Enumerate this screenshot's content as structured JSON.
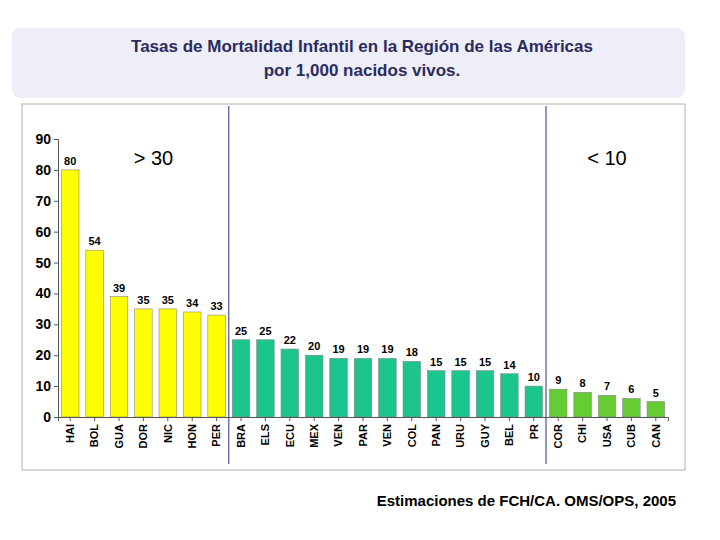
{
  "chart_data": {
    "type": "bar",
    "title": "Tasas de Mortalidad Infantil en la Región de las Américas",
    "subtitle": "por 1,000 nacidos vivos.",
    "annotations": [
      "> 30",
      "< 10"
    ],
    "source": "Estimaciones de FCH/CA. OMS/OPS, 2005",
    "categories": [
      "HAI",
      "BOL",
      "GUA",
      "DOR",
      "NIC",
      "HON",
      "PER",
      "BRA",
      "ELS",
      "ECU",
      "MEX",
      "VEN",
      "PAR",
      "VEN",
      "COL",
      "PAN",
      "URU",
      "GUY",
      "BEL",
      "PR",
      "COR",
      "CHI",
      "USA",
      "CUB",
      "CAN"
    ],
    "values": [
      80,
      54,
      39,
      35,
      35,
      34,
      33,
      25,
      25,
      22,
      20,
      19,
      19,
      19,
      18,
      15,
      15,
      15,
      14,
      10,
      9,
      8,
      7,
      6,
      5
    ],
    "colors": [
      "#ffff00",
      "#ffff00",
      "#ffff00",
      "#ffff00",
      "#ffff00",
      "#ffff00",
      "#ffff00",
      "#1cc48e",
      "#1cc48e",
      "#1cc48e",
      "#1cc48e",
      "#1cc48e",
      "#1cc48e",
      "#1cc48e",
      "#1cc48e",
      "#1cc48e",
      "#1cc48e",
      "#1cc48e",
      "#1cc48e",
      "#1cc48e",
      "#66cc33",
      "#66cc33",
      "#66cc33",
      "#66cc33",
      "#66cc33"
    ],
    "ylim": [
      0,
      90
    ],
    "yticks": [
      0,
      10,
      20,
      30,
      40,
      50,
      60,
      70,
      80,
      90
    ],
    "grid": false,
    "data_labels": true
  }
}
